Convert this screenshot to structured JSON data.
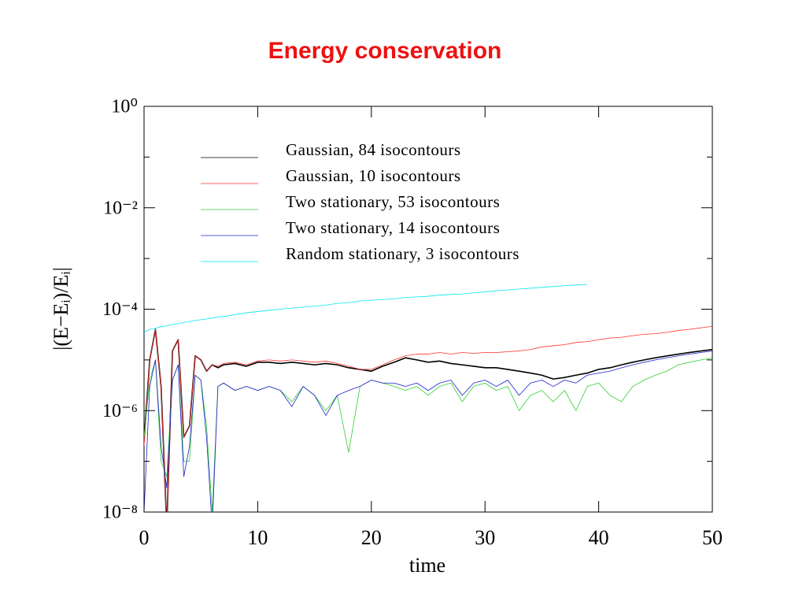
{
  "chart_data": {
    "type": "line",
    "title": "Energy conservation",
    "xlabel": "time",
    "ylabel": "|(E−Eᵢ)/Eᵢ|",
    "log_y": true,
    "legend": "upper left",
    "xlim": [
      0,
      50
    ],
    "ylim": [
      1e-08,
      1
    ],
    "xticks": [
      0,
      10,
      20,
      30,
      40,
      50
    ],
    "yticks": [
      {
        "value": 1,
        "label": "10⁰"
      },
      {
        "value": 0.01,
        "label": "10⁻²"
      },
      {
        "value": 0.0001,
        "label": "10⁻⁴"
      },
      {
        "value": 1e-06,
        "label": "10⁻⁶"
      },
      {
        "value": 1e-08,
        "label": "10⁻⁸"
      }
    ],
    "yminorticks": [
      0.1,
      0.001,
      1e-05,
      1e-07
    ],
    "x": [
      0,
      0.5,
      1,
      1.5,
      2,
      2.5,
      3,
      3.5,
      4,
      4.5,
      5,
      5.5,
      6,
      6.5,
      7,
      8,
      9,
      10,
      11,
      12,
      13,
      14,
      15,
      16,
      17,
      18,
      19,
      20,
      21,
      22,
      23,
      24,
      25,
      26,
      27,
      28,
      29,
      30,
      31,
      32,
      33,
      34,
      35,
      36,
      37,
      38,
      39,
      40,
      41,
      42,
      43,
      44,
      45,
      46,
      47,
      48,
      49,
      50
    ],
    "series": [
      {
        "name": "Gaussian, 84 isocontours",
        "color": "#000000",
        "width": 1.6,
        "values": [
          2.5e-07,
          1e-05,
          4e-05,
          3e-06,
          5e-09,
          1.5e-05,
          2.5e-05,
          3e-07,
          5e-07,
          1.2e-05,
          1e-05,
          6e-06,
          8e-06,
          7e-06,
          8e-06,
          8.5e-06,
          7.5e-06,
          9e-06,
          9e-06,
          8.5e-06,
          9e-06,
          8.5e-06,
          8e-06,
          8.5e-06,
          8e-06,
          7e-06,
          6.5e-06,
          6e-06,
          7.5e-06,
          9e-06,
          1.1e-05,
          1e-05,
          9e-06,
          9.5e-06,
          8.5e-06,
          8e-06,
          7.5e-06,
          7e-06,
          7e-06,
          6.5e-06,
          6e-06,
          5.5e-06,
          5e-06,
          4.2e-06,
          4.5e-06,
          5e-06,
          5.5e-06,
          6.5e-06,
          7e-06,
          8e-06,
          9e-06,
          1e-05,
          1.1e-05,
          1.2e-05,
          1.3e-05,
          1.4e-05,
          1.5e-05,
          1.6e-05
        ]
      },
      {
        "name": "Gaussian, 10 isocontours",
        "color": "#ff3030",
        "width": 0.8,
        "values": [
          2e-07,
          1e-05,
          4e-05,
          3e-06,
          5e-09,
          1.5e-05,
          2.5e-05,
          3e-07,
          5e-07,
          1.2e-05,
          1e-05,
          6e-06,
          8e-06,
          7.5e-06,
          8.5e-06,
          9e-06,
          8e-06,
          9.5e-06,
          1e-05,
          9.5e-06,
          1e-05,
          9.5e-06,
          9e-06,
          9.5e-06,
          8.5e-06,
          7.5e-06,
          6.5e-06,
          6.5e-06,
          8e-06,
          1e-05,
          1.2e-05,
          1.3e-05,
          1.3e-05,
          1.4e-05,
          1.3e-05,
          1.4e-05,
          1.35e-05,
          1.4e-05,
          1.4e-05,
          1.45e-05,
          1.5e-05,
          1.6e-05,
          1.8e-05,
          1.9e-05,
          2e-05,
          2.2e-05,
          2.3e-05,
          2.5e-05,
          2.7e-05,
          2.8e-05,
          3e-05,
          3.2e-05,
          3.3e-05,
          3.5e-05,
          3.8e-05,
          4e-05,
          4.3e-05,
          4.6e-05
        ]
      },
      {
        "name": "Two stationary, 53 isocontours",
        "color": "#30d030",
        "width": 0.8,
        "values": [
          3e-07,
          4e-06,
          1e-05,
          1e-07,
          5e-08,
          4e-06,
          8e-06,
          1e-07,
          1e-07,
          5e-06,
          4e-06,
          5e-07,
          1e-08,
          3e-06,
          3.5e-06,
          2.5e-06,
          3e-06,
          2.5e-06,
          3e-06,
          2.5e-06,
          1.5e-06,
          3e-06,
          2e-06,
          1e-06,
          2e-06,
          1.5e-07,
          3e-06,
          4e-06,
          3.5e-06,
          3e-06,
          2.5e-06,
          3e-06,
          2e-06,
          3e-06,
          3.5e-06,
          1.5e-06,
          3e-06,
          3.5e-06,
          2.5e-06,
          3e-06,
          1e-06,
          2e-06,
          2.5e-06,
          1.5e-06,
          2.5e-06,
          1e-06,
          3e-06,
          3.5e-06,
          2e-06,
          1.5e-06,
          3e-06,
          4e-06,
          5e-06,
          6e-06,
          8e-06,
          9e-06,
          1e-05,
          1.1e-05
        ]
      },
      {
        "name": "Two stationary, 14 isocontours",
        "color": "#2020d0",
        "width": 0.8,
        "values": [
          1e-08,
          3e-06,
          1e-05,
          2e-07,
          3e-08,
          4e-06,
          8e-06,
          5e-08,
          2e-07,
          5e-06,
          4e-06,
          3e-07,
          5e-09,
          3e-06,
          3.5e-06,
          2.5e-06,
          3e-06,
          2.5e-06,
          3e-06,
          2.5e-06,
          1.2e-06,
          3e-06,
          2e-06,
          8e-07,
          2e-06,
          2.5e-06,
          3e-06,
          4e-06,
          3.5e-06,
          3.5e-06,
          3e-06,
          3.5e-06,
          2.5e-06,
          3.5e-06,
          4e-06,
          2e-06,
          3.5e-06,
          4e-06,
          3e-06,
          4e-06,
          2e-06,
          3.5e-06,
          4e-06,
          3e-06,
          4e-06,
          3.5e-06,
          5e-06,
          5.5e-06,
          6e-06,
          7e-06,
          8e-06,
          9e-06,
          1e-05,
          1.1e-05,
          1.2e-05,
          1.3e-05,
          1.4e-05,
          1.5e-05
        ]
      },
      {
        "name": "Random stationary, 3 isocontours",
        "color": "#00e8f0",
        "width": 0.8,
        "values": [
          3.5e-05,
          4e-05,
          4.2e-05,
          4.5e-05,
          4.7e-05,
          5e-05,
          5.2e-05,
          5.5e-05,
          5.7e-05,
          6e-05,
          6.2e-05,
          6.4e-05,
          6.7e-05,
          7e-05,
          7.2e-05,
          7.8e-05,
          8.5e-05,
          9e-05,
          9.5e-05,
          0.0001,
          0.000105,
          0.00011,
          0.000115,
          0.00012,
          0.00013,
          0.000135,
          0.000145,
          0.00015,
          0.000155,
          0.00016,
          0.00017,
          0.000175,
          0.00018,
          0.00019,
          0.000195,
          0.0002,
          0.00021,
          0.00022,
          0.00023,
          0.00024,
          0.00025,
          0.00026,
          0.00027,
          0.00028,
          0.00029,
          0.0003,
          0.00031,
          null,
          null,
          null,
          null,
          null,
          null,
          null,
          null,
          null,
          null,
          null
        ]
      }
    ]
  }
}
